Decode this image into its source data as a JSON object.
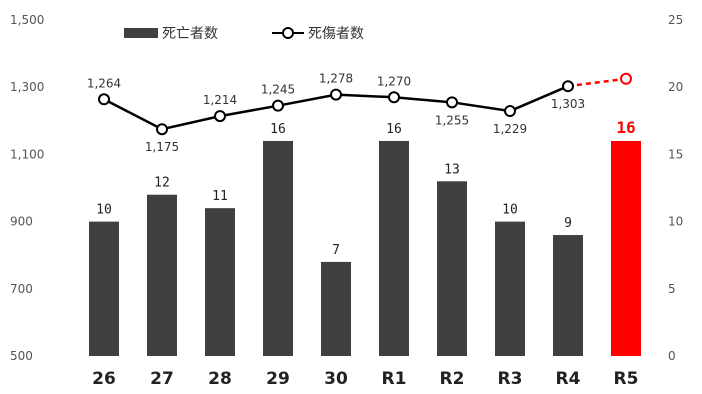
{
  "chart_data": {
    "type": "bar",
    "categories": [
      "26",
      "27",
      "28",
      "29",
      "30",
      "R1",
      "R2",
      "R3",
      "R4",
      "R5"
    ],
    "series": [
      {
        "name": "死亡者数",
        "axis": "right",
        "values": [
          10,
          12,
          11,
          16,
          7,
          16,
          13,
          10,
          9,
          16
        ],
        "labels": [
          "10",
          "12",
          "11",
          "16",
          "7",
          "16",
          "13",
          "10",
          "9",
          "16"
        ],
        "color": "#404040",
        "highlight_index": 9,
        "highlight_color": "#ff0000"
      },
      {
        "name": "死傷者数",
        "type": "line",
        "axis": "left",
        "values": [
          1264,
          1175,
          1214,
          1245,
          1278,
          1270,
          1255,
          1229,
          1303,
          1325
        ],
        "labels": [
          "1,264",
          "1,175",
          "1,214",
          "1,245",
          "1,278",
          "1,270",
          "1,255",
          "1,229",
          "1,303",
          ""
        ],
        "color": "#000000",
        "highlight_index": 9,
        "highlight_color": "#ff0000"
      }
    ],
    "y_left": {
      "range": [
        500,
        1500
      ],
      "ticks": [
        "500",
        "700",
        "900",
        "1,100",
        "1,300",
        "1,500"
      ],
      "tick_values": [
        500,
        700,
        900,
        1100,
        1300,
        1500
      ]
    },
    "y_right": {
      "range": [
        0,
        25
      ],
      "ticks": [
        "0",
        "5",
        "10",
        "15",
        "20",
        "25"
      ],
      "tick_values": [
        0,
        5,
        10,
        15,
        20,
        25
      ]
    },
    "grid": false,
    "legend": "top-left"
  }
}
